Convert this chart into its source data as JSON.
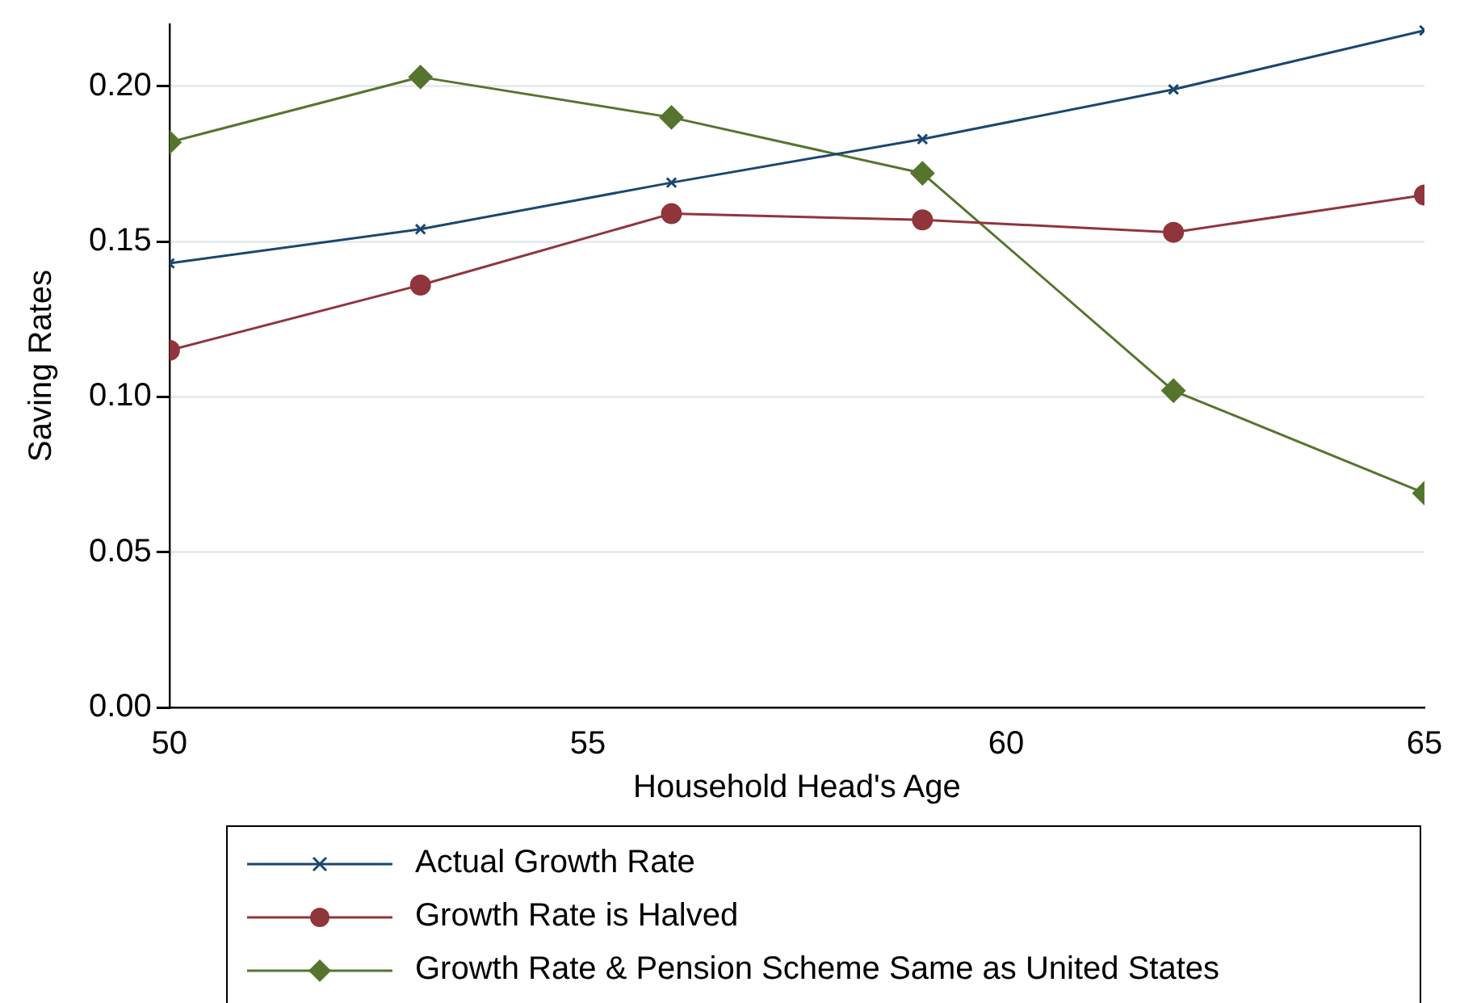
{
  "chart_data": {
    "type": "line",
    "xlabel": "Household Head's Age",
    "ylabel": "Saving Rates",
    "x": [
      50,
      53,
      56,
      59,
      62,
      65
    ],
    "series": [
      {
        "name": "Actual Growth Rate",
        "color": "#1a476f",
        "marker": "cross",
        "values": [
          0.143,
          0.154,
          0.169,
          0.183,
          0.199,
          0.218
        ]
      },
      {
        "name": "Growth Rate is Halved",
        "color": "#90353b",
        "marker": "circle",
        "values": [
          0.115,
          0.136,
          0.159,
          0.157,
          0.153,
          0.165
        ]
      },
      {
        "name": "Growth Rate & Pension Scheme Same as United States",
        "color": "#55752f",
        "marker": "diamond",
        "values": [
          0.182,
          0.203,
          0.19,
          0.172,
          0.102,
          0.069
        ]
      }
    ],
    "xlim": [
      50,
      65
    ],
    "xticks": [
      50,
      55,
      60,
      65
    ],
    "ylim": [
      0,
      0.22
    ],
    "yticks": [
      {
        "value": 0,
        "label": "0.00"
      },
      {
        "value": 0.05,
        "label": "0.05"
      },
      {
        "value": 0.1,
        "label": "0.10"
      },
      {
        "value": 0.15,
        "label": "0.15"
      },
      {
        "value": 0.2,
        "label": "0.20"
      }
    ],
    "grid": "y",
    "legend": "bottom"
  }
}
